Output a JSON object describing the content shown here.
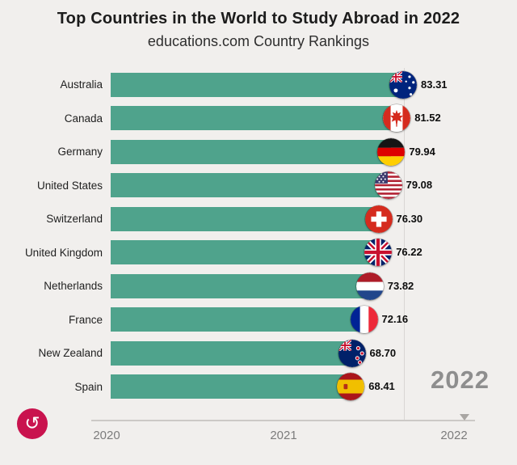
{
  "title": "Top Countries in the World to Study Abroad in 2022",
  "subtitle": "educations.com Country Rankings",
  "watermark_year": "2022",
  "colors": {
    "bar": "#4fa38c",
    "background": "#f1efed",
    "replay_button": "#c9134e",
    "watermark": "#8e8e8e",
    "axis_text": "#7c7c7c"
  },
  "replay": {
    "icon_name": "replay-icon",
    "icon_glyph": "↺"
  },
  "time_axis": {
    "ticks": [
      "2020",
      "2021",
      "2022"
    ],
    "current": "2022"
  },
  "chart_data": {
    "type": "bar",
    "orientation": "horizontal",
    "title": "Top Countries in the World to Study Abroad in 2022",
    "subtitle": "educations.com Country Rankings",
    "categories": [
      "Australia",
      "Canada",
      "Germany",
      "United States",
      "Switzerland",
      "United Kingdom",
      "Netherlands",
      "France",
      "New Zealand",
      "Spain"
    ],
    "values": [
      83.31,
      81.52,
      79.94,
      79.08,
      76.3,
      76.22,
      73.82,
      72.16,
      68.7,
      68.41
    ],
    "value_labels": [
      "83.31",
      "81.52",
      "79.94",
      "79.08",
      "76.30",
      "76.22",
      "73.82",
      "72.16",
      "68.70",
      "68.41"
    ],
    "flags": [
      "au",
      "ca",
      "de",
      "us",
      "ch",
      "gb",
      "nl",
      "fr",
      "nz",
      "es"
    ],
    "xlabel": "",
    "ylabel": "",
    "xlim": [
      0,
      83.31
    ],
    "grid": false,
    "legend": "none",
    "time_ticks": [
      "2020",
      "2021",
      "2022"
    ],
    "current_frame": "2022"
  }
}
